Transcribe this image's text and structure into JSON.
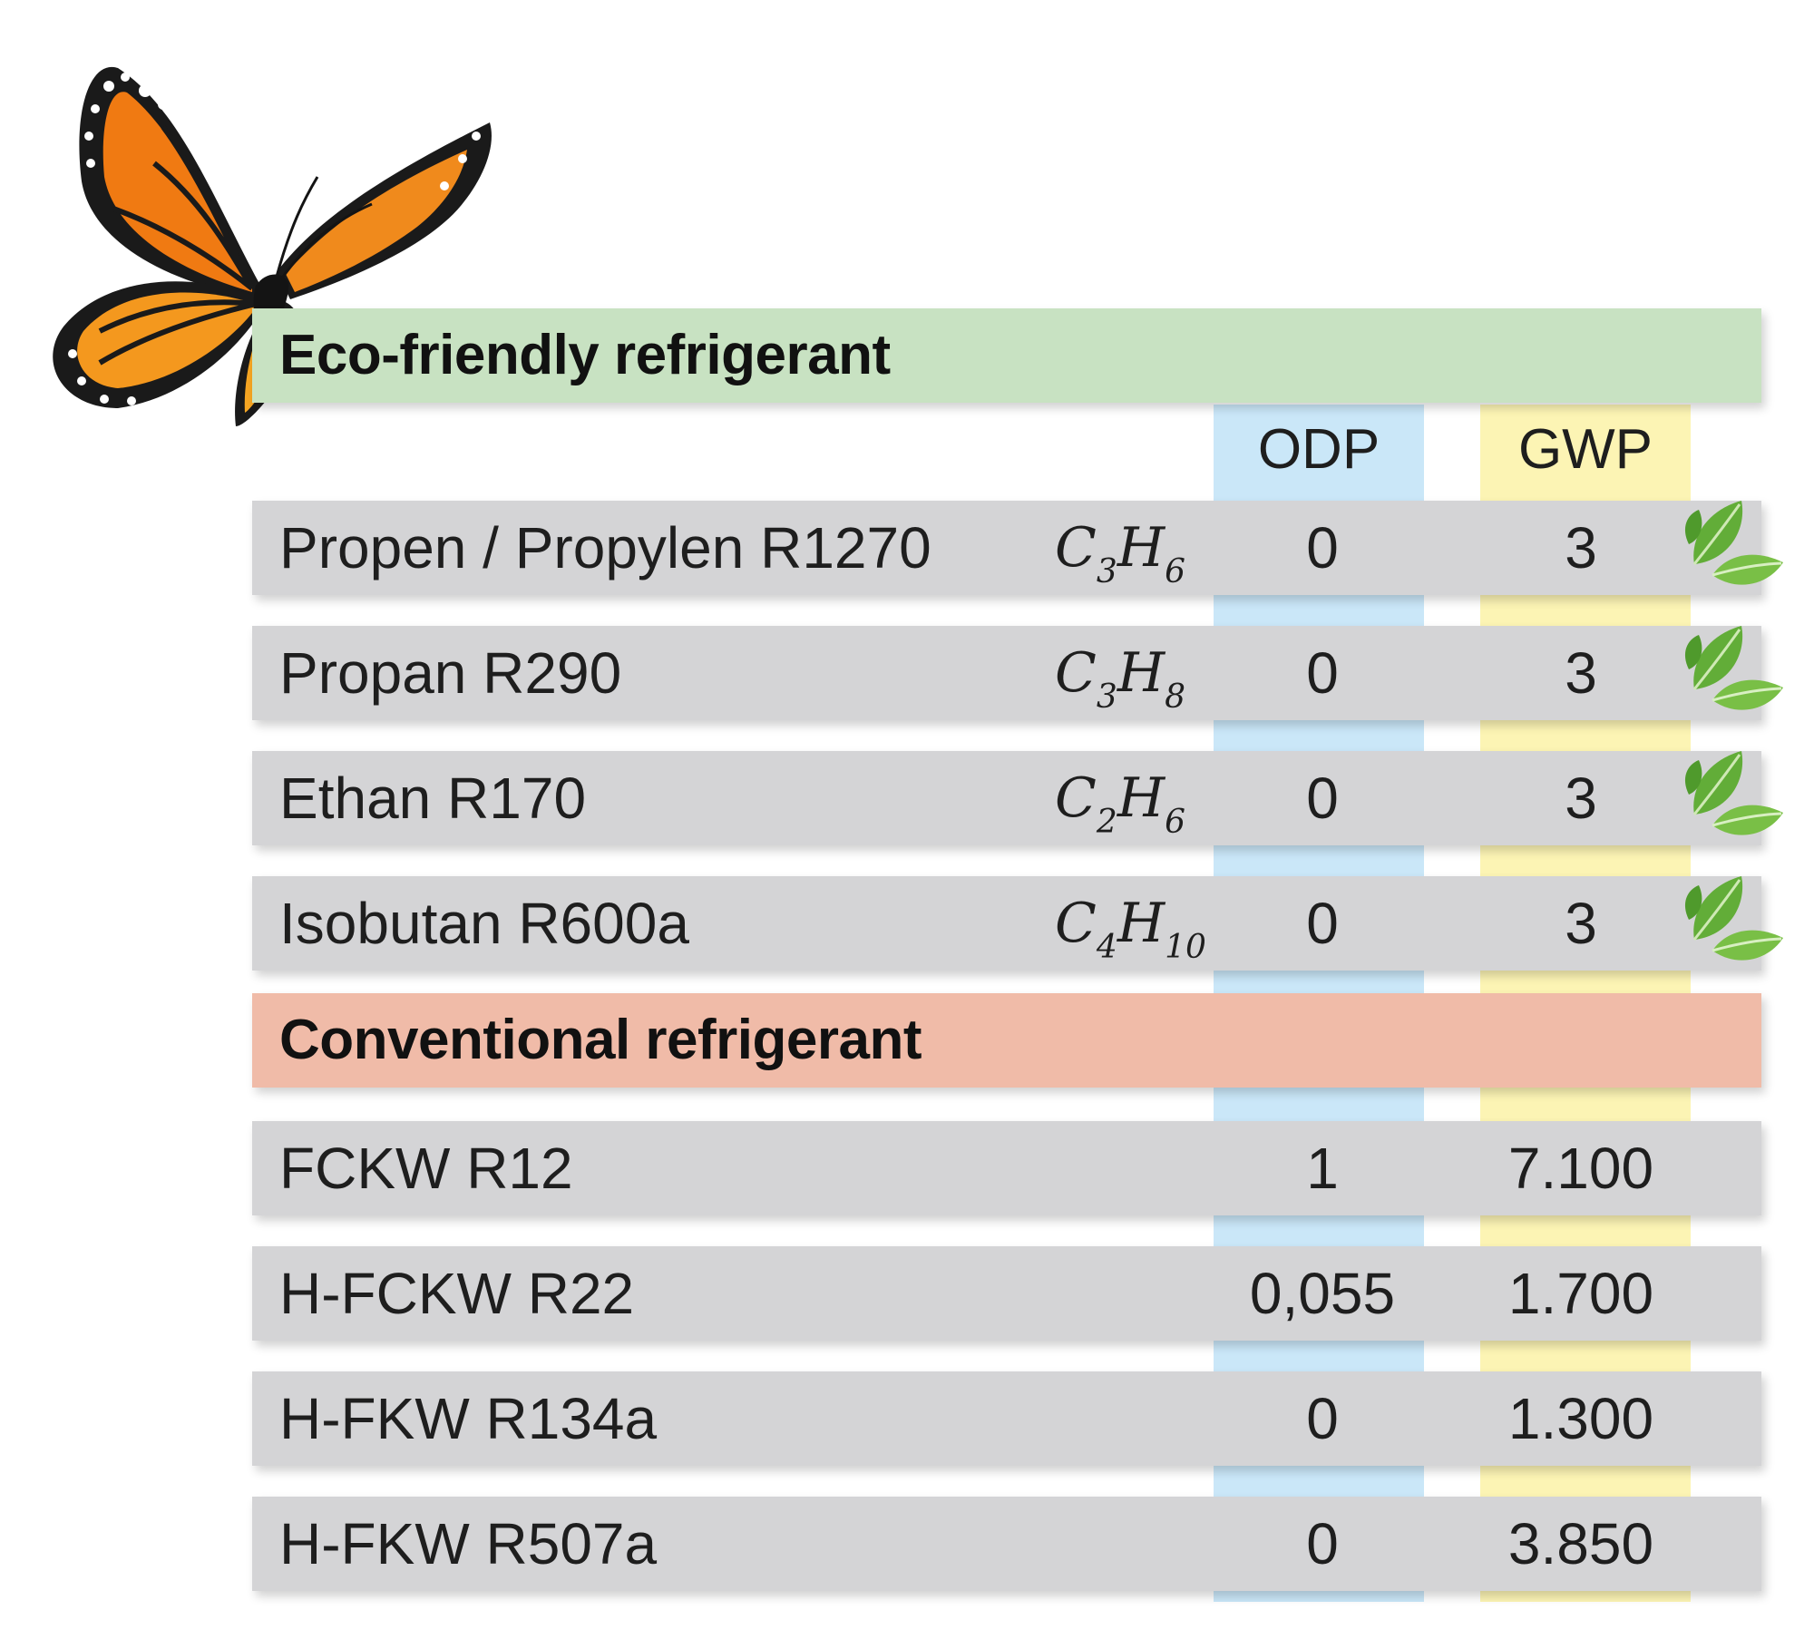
{
  "colors": {
    "eco_header": "#c8e2c2",
    "conv_header": "#f0bba8",
    "row_bg": "#d4d4d6",
    "odp_column": "#cae7f8",
    "gwp_column": "#fcf4b4",
    "leaf_green": "#5aa535"
  },
  "eco_section": {
    "title": "Eco-friendly refrigerant"
  },
  "columns": {
    "odp": "ODP",
    "gwp": "GWP"
  },
  "eco_rows": [
    {
      "name": "Propen / Propylen R1270",
      "formula": {
        "c": "C",
        "cn": "3",
        "h": "H",
        "hn": "6"
      },
      "odp": "0",
      "gwp": "3",
      "icon": "leaf-icon"
    },
    {
      "name": "Propan R290",
      "formula": {
        "c": "C",
        "cn": "3",
        "h": "H",
        "hn": "8"
      },
      "odp": "0",
      "gwp": "3",
      "icon": "leaf-icon"
    },
    {
      "name": "Ethan R170",
      "formula": {
        "c": "C",
        "cn": "2",
        "h": "H",
        "hn": "6"
      },
      "odp": "0",
      "gwp": "3",
      "icon": "leaf-icon"
    },
    {
      "name": "Isobutan R600a",
      "formula": {
        "c": "C",
        "cn": "4",
        "h": "H",
        "hn": "10"
      },
      "odp": "0",
      "gwp": "3",
      "icon": "leaf-icon"
    }
  ],
  "conv_section": {
    "title": "Conventional refrigerant"
  },
  "conv_rows": [
    {
      "name": "FCKW R12",
      "odp": "1",
      "gwp": "7.100"
    },
    {
      "name": "H-FCKW R22",
      "odp": "0,055",
      "gwp": "1.700"
    },
    {
      "name": "H-FKW R134a",
      "odp": "0",
      "gwp": "1.300"
    },
    {
      "name": "H-FKW R507a",
      "odp": "0",
      "gwp": "3.850"
    }
  ],
  "chart_data": {
    "type": "table",
    "columns": [
      "ODP",
      "GWP"
    ],
    "groups": [
      {
        "name": "Eco-friendly refrigerant",
        "rows": [
          {
            "label": "Propen / Propylen R1270",
            "formula": "C3H6",
            "ODP": 0,
            "GWP": 3
          },
          {
            "label": "Propan R290",
            "formula": "C3H8",
            "ODP": 0,
            "GWP": 3
          },
          {
            "label": "Ethan R170",
            "formula": "C2H6",
            "ODP": 0,
            "GWP": 3
          },
          {
            "label": "Isobutan R600a",
            "formula": "C4H10",
            "ODP": 0,
            "GWP": 3
          }
        ]
      },
      {
        "name": "Conventional refrigerant",
        "rows": [
          {
            "label": "FCKW R12",
            "ODP": 1,
            "GWP": 7100
          },
          {
            "label": "H-FCKW R22",
            "ODP": 0.055,
            "GWP": 1700
          },
          {
            "label": "H-FKW R134a",
            "ODP": 0,
            "GWP": 1300
          },
          {
            "label": "H-FKW R507a",
            "ODP": 0,
            "GWP": 3850
          }
        ]
      }
    ]
  }
}
